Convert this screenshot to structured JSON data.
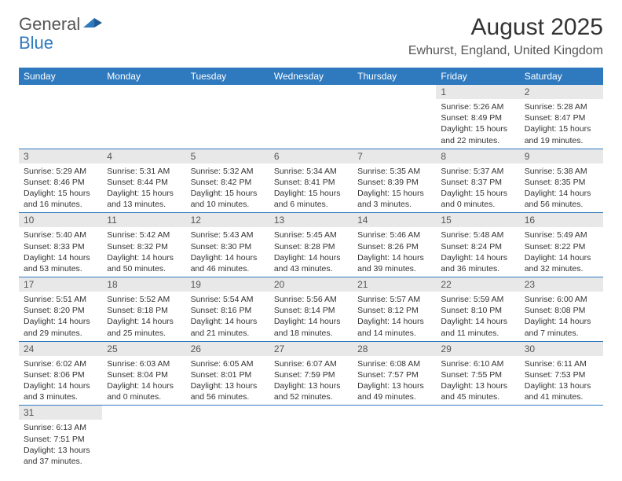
{
  "logo": {
    "general": "General",
    "blue": "Blue"
  },
  "title": "August 2025",
  "location": "Ewhurst, England, United Kingdom",
  "header_bg": "#2f7abf",
  "daynum_bg": "#e8e8e8",
  "daysOfWeek": [
    "Sunday",
    "Monday",
    "Tuesday",
    "Wednesday",
    "Thursday",
    "Friday",
    "Saturday"
  ],
  "weeks": [
    [
      null,
      null,
      null,
      null,
      null,
      {
        "n": "1",
        "sunrise": "5:26 AM",
        "sunset": "8:49 PM",
        "daylight": "15 hours and 22 minutes."
      },
      {
        "n": "2",
        "sunrise": "5:28 AM",
        "sunset": "8:47 PM",
        "daylight": "15 hours and 19 minutes."
      }
    ],
    [
      {
        "n": "3",
        "sunrise": "5:29 AM",
        "sunset": "8:46 PM",
        "daylight": "15 hours and 16 minutes."
      },
      {
        "n": "4",
        "sunrise": "5:31 AM",
        "sunset": "8:44 PM",
        "daylight": "15 hours and 13 minutes."
      },
      {
        "n": "5",
        "sunrise": "5:32 AM",
        "sunset": "8:42 PM",
        "daylight": "15 hours and 10 minutes."
      },
      {
        "n": "6",
        "sunrise": "5:34 AM",
        "sunset": "8:41 PM",
        "daylight": "15 hours and 6 minutes."
      },
      {
        "n": "7",
        "sunrise": "5:35 AM",
        "sunset": "8:39 PM",
        "daylight": "15 hours and 3 minutes."
      },
      {
        "n": "8",
        "sunrise": "5:37 AM",
        "sunset": "8:37 PM",
        "daylight": "15 hours and 0 minutes."
      },
      {
        "n": "9",
        "sunrise": "5:38 AM",
        "sunset": "8:35 PM",
        "daylight": "14 hours and 56 minutes."
      }
    ],
    [
      {
        "n": "10",
        "sunrise": "5:40 AM",
        "sunset": "8:33 PM",
        "daylight": "14 hours and 53 minutes."
      },
      {
        "n": "11",
        "sunrise": "5:42 AM",
        "sunset": "8:32 PM",
        "daylight": "14 hours and 50 minutes."
      },
      {
        "n": "12",
        "sunrise": "5:43 AM",
        "sunset": "8:30 PM",
        "daylight": "14 hours and 46 minutes."
      },
      {
        "n": "13",
        "sunrise": "5:45 AM",
        "sunset": "8:28 PM",
        "daylight": "14 hours and 43 minutes."
      },
      {
        "n": "14",
        "sunrise": "5:46 AM",
        "sunset": "8:26 PM",
        "daylight": "14 hours and 39 minutes."
      },
      {
        "n": "15",
        "sunrise": "5:48 AM",
        "sunset": "8:24 PM",
        "daylight": "14 hours and 36 minutes."
      },
      {
        "n": "16",
        "sunrise": "5:49 AM",
        "sunset": "8:22 PM",
        "daylight": "14 hours and 32 minutes."
      }
    ],
    [
      {
        "n": "17",
        "sunrise": "5:51 AM",
        "sunset": "8:20 PM",
        "daylight": "14 hours and 29 minutes."
      },
      {
        "n": "18",
        "sunrise": "5:52 AM",
        "sunset": "8:18 PM",
        "daylight": "14 hours and 25 minutes."
      },
      {
        "n": "19",
        "sunrise": "5:54 AM",
        "sunset": "8:16 PM",
        "daylight": "14 hours and 21 minutes."
      },
      {
        "n": "20",
        "sunrise": "5:56 AM",
        "sunset": "8:14 PM",
        "daylight": "14 hours and 18 minutes."
      },
      {
        "n": "21",
        "sunrise": "5:57 AM",
        "sunset": "8:12 PM",
        "daylight": "14 hours and 14 minutes."
      },
      {
        "n": "22",
        "sunrise": "5:59 AM",
        "sunset": "8:10 PM",
        "daylight": "14 hours and 11 minutes."
      },
      {
        "n": "23",
        "sunrise": "6:00 AM",
        "sunset": "8:08 PM",
        "daylight": "14 hours and 7 minutes."
      }
    ],
    [
      {
        "n": "24",
        "sunrise": "6:02 AM",
        "sunset": "8:06 PM",
        "daylight": "14 hours and 3 minutes."
      },
      {
        "n": "25",
        "sunrise": "6:03 AM",
        "sunset": "8:04 PM",
        "daylight": "14 hours and 0 minutes."
      },
      {
        "n": "26",
        "sunrise": "6:05 AM",
        "sunset": "8:01 PM",
        "daylight": "13 hours and 56 minutes."
      },
      {
        "n": "27",
        "sunrise": "6:07 AM",
        "sunset": "7:59 PM",
        "daylight": "13 hours and 52 minutes."
      },
      {
        "n": "28",
        "sunrise": "6:08 AM",
        "sunset": "7:57 PM",
        "daylight": "13 hours and 49 minutes."
      },
      {
        "n": "29",
        "sunrise": "6:10 AM",
        "sunset": "7:55 PM",
        "daylight": "13 hours and 45 minutes."
      },
      {
        "n": "30",
        "sunrise": "6:11 AM",
        "sunset": "7:53 PM",
        "daylight": "13 hours and 41 minutes."
      }
    ],
    [
      {
        "n": "31",
        "sunrise": "6:13 AM",
        "sunset": "7:51 PM",
        "daylight": "13 hours and 37 minutes."
      },
      null,
      null,
      null,
      null,
      null,
      null
    ]
  ],
  "labels": {
    "sunrise": "Sunrise: ",
    "sunset": "Sunset: ",
    "daylight": "Daylight: "
  }
}
